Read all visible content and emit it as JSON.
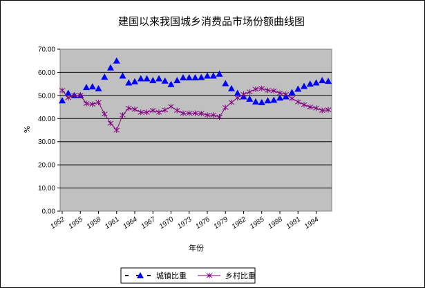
{
  "chart_data": {
    "type": "line",
    "title": "建国以来我国城乡消费品市场份额曲线图",
    "xlabel": "年份",
    "ylabel": "%",
    "ylim": [
      0,
      70
    ],
    "y_ticks": [
      "0.00",
      "10.00",
      "20.00",
      "30.00",
      "40.00",
      "50.00",
      "60.00",
      "70.00"
    ],
    "x_ticks": [
      "1952",
      "1955",
      "1958",
      "1961",
      "1964",
      "1967",
      "1970",
      "1973",
      "1976",
      "1979",
      "1982",
      "1985",
      "1988",
      "1991",
      "1994"
    ],
    "x": [
      1952,
      1953,
      1954,
      1955,
      1956,
      1957,
      1958,
      1959,
      1960,
      1961,
      1962,
      1963,
      1964,
      1965,
      1966,
      1967,
      1968,
      1969,
      1970,
      1971,
      1972,
      1973,
      1974,
      1975,
      1976,
      1977,
      1978,
      1979,
      1980,
      1981,
      1982,
      1983,
      1984,
      1985,
      1986,
      1987,
      1988,
      1989,
      1990,
      1991,
      1992,
      1993,
      1994,
      1995,
      1996
    ],
    "grid": "horizontal",
    "plot_background": "#c0c0c0",
    "legend_position": "bottom",
    "series": [
      {
        "name": "城镇比重",
        "color": "#0000ff",
        "marker": "triangle",
        "values": [
          47.8,
          51.0,
          50.0,
          50.0,
          53.5,
          53.8,
          53.0,
          58.0,
          62.0,
          65.0,
          58.5,
          55.5,
          56.0,
          57.3,
          57.3,
          56.5,
          57.3,
          56.3,
          54.8,
          56.5,
          57.7,
          57.7,
          57.7,
          57.8,
          58.5,
          58.5,
          59.3,
          55.2,
          53.0,
          51.0,
          49.5,
          48.5,
          47.3,
          47.0,
          47.8,
          48.0,
          49.0,
          49.5,
          51.3,
          52.8,
          54.0,
          55.0,
          55.5,
          56.5,
          56.2
        ]
      },
      {
        "name": "乡村比重",
        "color": "#800080",
        "marker": "star",
        "values": [
          52.2,
          49.0,
          50.0,
          50.0,
          46.5,
          46.2,
          47.0,
          42.0,
          38.0,
          35.0,
          41.5,
          44.5,
          44.0,
          42.7,
          42.7,
          43.5,
          42.7,
          43.7,
          45.2,
          43.5,
          42.3,
          42.3,
          42.3,
          42.2,
          41.5,
          41.5,
          40.7,
          44.8,
          47.0,
          49.0,
          50.5,
          51.5,
          52.7,
          53.0,
          52.2,
          52.0,
          51.0,
          50.5,
          48.7,
          47.2,
          46.0,
          45.0,
          44.5,
          43.5,
          43.8
        ]
      }
    ]
  }
}
